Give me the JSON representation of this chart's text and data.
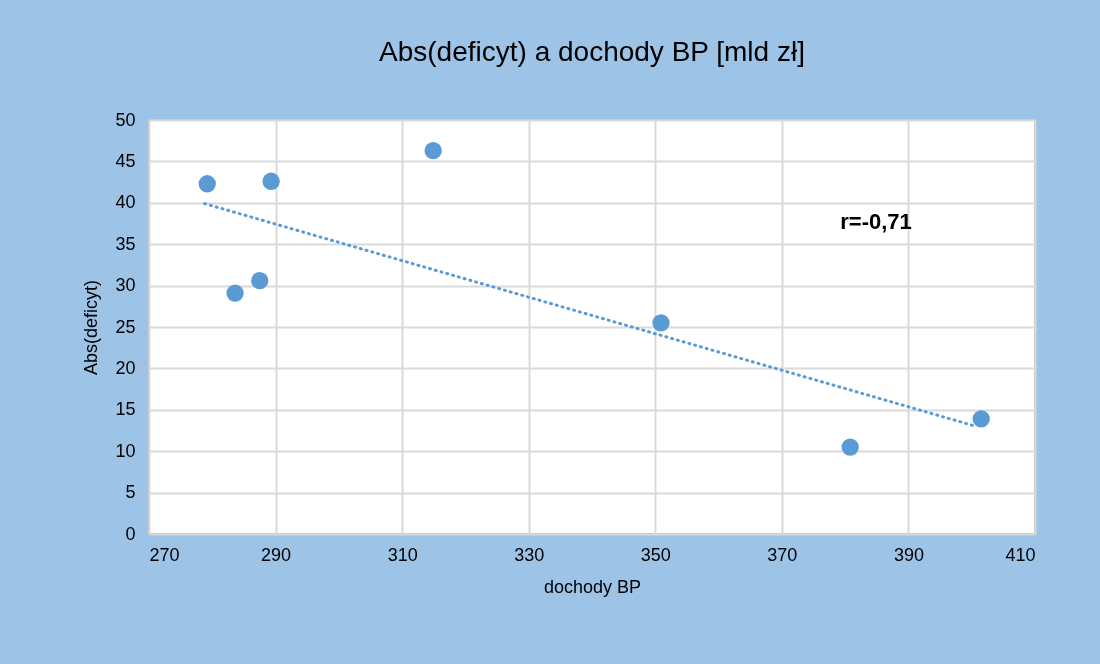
{
  "chart_data": {
    "type": "scatter",
    "title": "Abs(deficyt) a dochody BP [mld zł]",
    "xlabel": "dochody BP",
    "ylabel": "Abs(deficyt)",
    "annotations": [
      "r=-0,71"
    ],
    "series": [
      {
        "color": "#5b9bd5",
        "marker": "circle",
        "x": [
          279.2,
          283.6,
          287.5,
          289.3,
          314.9,
          350.9,
          380.8,
          401.5
        ],
        "values": [
          42.3,
          29.1,
          30.6,
          42.6,
          46.3,
          25.5,
          10.5,
          13.9
        ]
      },
      {
        "type": "line",
        "color": "#5b9bd5",
        "line_style": "dotted",
        "marker": "none",
        "x": [
          278.8,
          400.7
        ],
        "values": [
          39.9,
          13.0
        ]
      }
    ],
    "xlim": [
      270,
      410
    ],
    "xticks": [
      270,
      290,
      310,
      330,
      350,
      370,
      390,
      410
    ],
    "ylim": [
      0,
      50
    ],
    "yticks": [
      0,
      5,
      10,
      15,
      20,
      25,
      30,
      35,
      40,
      45,
      50
    ],
    "grid": true
  }
}
